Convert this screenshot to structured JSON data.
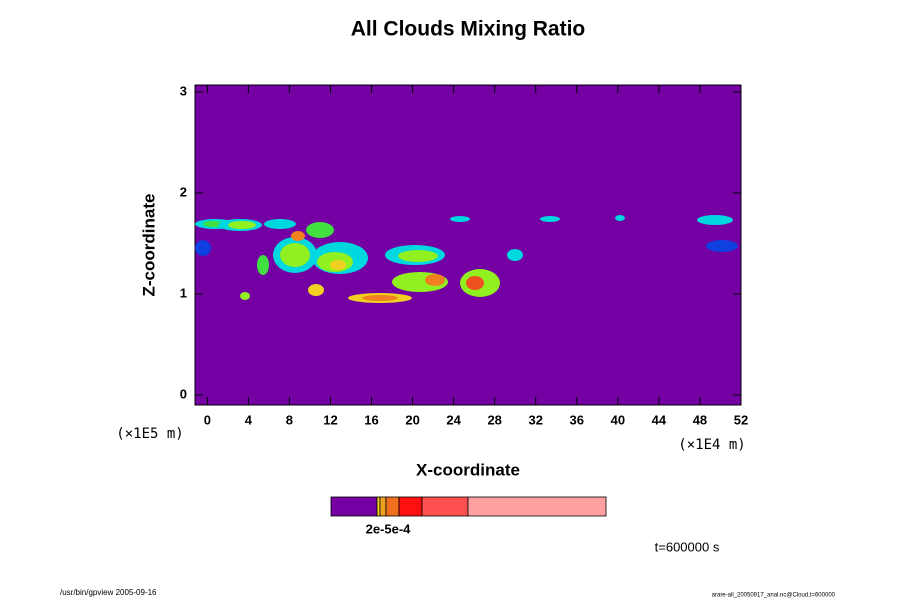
{
  "chart_data": {
    "type": "contour",
    "title": "All Clouds Mixing Ratio",
    "x_label": "X-coordinate",
    "y_label": "Z-coordinate",
    "x_unit": "(×1E4 m)",
    "y_unit": "(×1E5 m)",
    "xlim": [
      -1.2,
      52
    ],
    "ylim": [
      -0.1,
      3.07
    ],
    "xticks": [
      0,
      4,
      8,
      12,
      16,
      20,
      24,
      28,
      32,
      36,
      40,
      44,
      48,
      52
    ],
    "yticks": [
      0,
      1,
      2,
      3
    ],
    "colorbar_label": "2e-5e-4",
    "time_label": "t=600000 s"
  },
  "footer": {
    "left": "/usr/bin/gpview 2005-09-16",
    "right": "arare-all_20050917_anal.nc@Cloud,t=600000"
  }
}
